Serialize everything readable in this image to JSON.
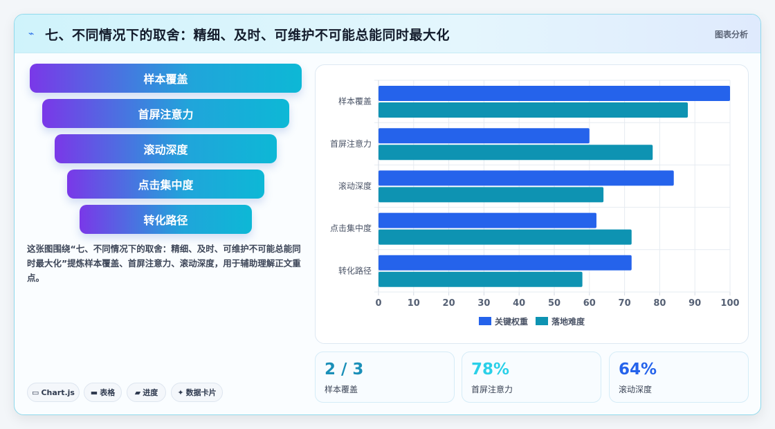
{
  "header": {
    "icon": "lightning-icon",
    "title": "七、不同情况下的取舍：精细、及时、可维护不可能总能同时最大化",
    "tag": "图表分析"
  },
  "funnel": {
    "steps": [
      "样本覆盖",
      "首屏注意力",
      "滚动深度",
      "点击集中度",
      "转化路径"
    ]
  },
  "description": "这张图围绕“七、不同情况下的取舍：精细、及时、可维护不可能总能同时最大化”提炼样本覆盖、首屏注意力、滚动深度，用于辅助理解正文重点。",
  "chips": [
    {
      "icon": "window-icon",
      "glyph": "▭",
      "label": "Chart.js"
    },
    {
      "icon": "table-icon",
      "glyph": "▬",
      "label": "表格"
    },
    {
      "icon": "progress-icon",
      "glyph": "▰",
      "label": "进度"
    },
    {
      "icon": "sparkle-icon",
      "glyph": "✦",
      "label": "数据卡片"
    }
  ],
  "stats": [
    {
      "value": "2 / 3",
      "label": "样本覆盖",
      "color": "#1a8fb8"
    },
    {
      "value": "78%",
      "label": "首屏注意力",
      "color": "#2ad0e8"
    },
    {
      "value": "64%",
      "label": "滚动深度",
      "color": "#2563eb"
    }
  ],
  "chart_data": {
    "type": "bar",
    "orientation": "horizontal",
    "categories": [
      "样本覆盖",
      "首屏注意力",
      "滚动深度",
      "点击集中度",
      "转化路径"
    ],
    "series": [
      {
        "name": "关键权重",
        "values": [
          100,
          60,
          84,
          62,
          72
        ],
        "color": "#2563eb"
      },
      {
        "name": "落地难度",
        "values": [
          88,
          78,
          64,
          72,
          58
        ],
        "color": "#0e93b2"
      }
    ],
    "xlim": [
      0,
      100
    ],
    "xticks": [
      0,
      10,
      20,
      30,
      40,
      50,
      60,
      70,
      80,
      90,
      100
    ],
    "grid": true,
    "legend": "bottom"
  }
}
